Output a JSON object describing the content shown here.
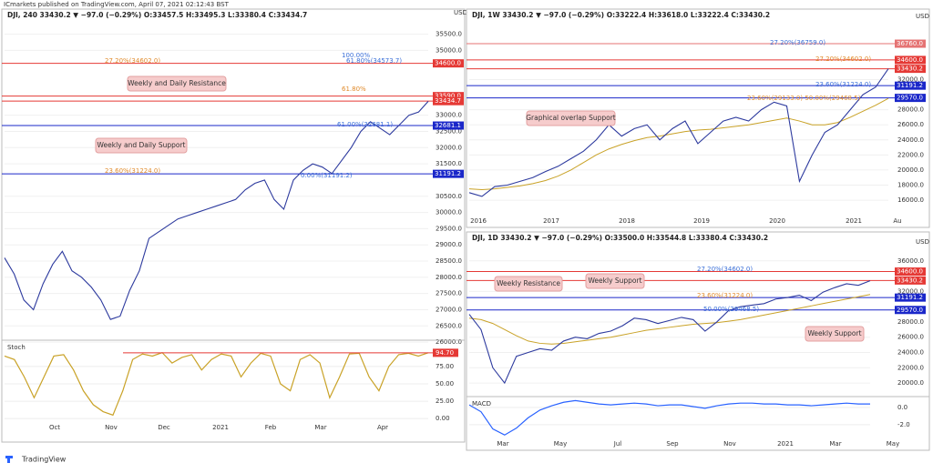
{
  "header": "ICmarkets published on TradingView.com, April 07, 2021 02:12:43 BST",
  "footer": "TradingView",
  "panels": [
    {
      "title": "DJI, 240  33430.2 ▼ −97.0 (−0.29%) O:33457.5 H:33495.3 L:33380.4 C:33434.7",
      "currency": "USD",
      "ylim": [
        25750,
        36050
      ],
      "ticks": [
        {
          "value": 35500,
          "label": "35500.0"
        },
        {
          "value": 35000,
          "label": "35000.0"
        },
        {
          "value": 33000,
          "label": "33000.0"
        },
        {
          "value": 32500,
          "label": "32500.0"
        },
        {
          "value": 32000,
          "label": "32000.0"
        },
        {
          "value": 31500,
          "label": "31500.0"
        },
        {
          "value": 30500,
          "label": "30500.0"
        },
        {
          "value": 30000,
          "label": "30000.0"
        },
        {
          "value": 29500,
          "label": "29500.0"
        },
        {
          "value": 29000,
          "label": "29000.0"
        },
        {
          "value": 28500,
          "label": "28500.0"
        },
        {
          "value": 28000,
          "label": "28000.0"
        },
        {
          "value": 27500,
          "label": "27500.0"
        },
        {
          "value": 27000,
          "label": "27000.0"
        },
        {
          "value": 26500,
          "label": "26500.0"
        },
        {
          "value": 26000,
          "label": "26000.0"
        }
      ],
      "levels": [
        {
          "value": 34600,
          "label": "34600.0",
          "color": "#e53935"
        },
        {
          "value": 33590,
          "label": "33590.0",
          "color": "#e53935"
        },
        {
          "value": 33434.7,
          "label": "33434.7",
          "color": "#e53935"
        },
        {
          "value": 32681.1,
          "label": "32681.1",
          "color": "#1a27c9"
        },
        {
          "value": 31191.2,
          "label": "31191.2",
          "color": "#1a27c9"
        }
      ],
      "annotations": [
        "100.00%",
        "27.20%(34602.0)",
        "61.80%(34573.7)",
        "61.80%",
        "61.00%(32681.1)",
        "23.60%(31224.0)",
        "0.00%(31191.2)"
      ],
      "callouts": [
        "Weekly and Daily Resistance",
        "Weekly and Daily Support"
      ],
      "time_labels": [
        "Oct",
        "Nov",
        "Dec",
        "2021",
        "Feb",
        "Mar",
        "Apr"
      ],
      "prices": [
        28600,
        28100,
        27300,
        27000,
        27800,
        28400,
        28800,
        28200,
        28000,
        27700,
        27300,
        26700,
        26800,
        27600,
        28200,
        29200,
        29400,
        29600,
        29800,
        29900,
        30000,
        30100,
        30200,
        30300,
        30400,
        30700,
        30900,
        31000,
        30400,
        30100,
        31000,
        31300,
        31500,
        31400,
        31200,
        31600,
        32000,
        32500,
        32800,
        32600,
        32400,
        32700,
        33000,
        33100,
        33430
      ],
      "osc": {
        "name": "Stoch",
        "ylim": [
          -5,
          105
        ],
        "ticks": [
          {
            "value": 75,
            "label": "75.00"
          },
          {
            "value": 50,
            "label": "50.00"
          },
          {
            "value": 25,
            "label": "25.00"
          },
          {
            "value": 0,
            "label": "0.00"
          }
        ],
        "last": {
          "value": 94.7,
          "label": "94.70"
        },
        "values": [
          90,
          85,
          60,
          30,
          60,
          90,
          92,
          70,
          40,
          20,
          10,
          5,
          40,
          85,
          93,
          90,
          95,
          80,
          88,
          92,
          70,
          85,
          93,
          90,
          60,
          80,
          94,
          90,
          50,
          40,
          85,
          92,
          80,
          30,
          60,
          93,
          94,
          60,
          40,
          75,
          92,
          94,
          90,
          94.7
        ]
      }
    },
    {
      "title": "DJI, 1W  33430.2 ▼ −97.0 (−0.29%) O:33222.4 H:33618.0 L:33222.4 C:33430.2",
      "currency": "USD",
      "ylim": [
        14200,
        39900
      ],
      "ticks": [
        {
          "value": 32000,
          "label": "32000.0"
        },
        {
          "value": 28000,
          "label": "28000.0"
        },
        {
          "value": 26000,
          "label": "26000.0"
        },
        {
          "value": 24000,
          "label": "24000.0"
        },
        {
          "value": 22000,
          "label": "22000.0"
        },
        {
          "value": 20000,
          "label": "20000.0"
        },
        {
          "value": 18000,
          "label": "18000.0"
        },
        {
          "value": 16000,
          "label": "16000.0"
        }
      ],
      "levels": [
        {
          "value": 36760,
          "label": "36760.0",
          "color": "#e57373"
        },
        {
          "value": 34600,
          "label": "34600.0",
          "color": "#e53935"
        },
        {
          "value": 33430.2,
          "label": "33430.2",
          "color": "#e53935"
        },
        {
          "value": 31191.2,
          "label": "31191.2",
          "color": "#1a27c9"
        },
        {
          "value": 29570,
          "label": "29570.0",
          "color": "#1a27c9"
        }
      ],
      "annotations": [
        "27.20%(36759.0)",
        "27.20%(34602.0)",
        "23.60%(31224.0)",
        "23.60%(29133.0) 50.00%(29468.5)"
      ],
      "callouts": [
        "Graphical overlap Support"
      ],
      "time_labels": [
        "2016",
        "2017",
        "2018",
        "2019",
        "2020",
        "2021",
        "Au"
      ],
      "prices": [
        17000,
        16500,
        17800,
        18000,
        18500,
        19000,
        19800,
        20500,
        21500,
        22500,
        24000,
        26000,
        24500,
        25500,
        26000,
        24000,
        25500,
        26500,
        23500,
        25000,
        26500,
        27000,
        26500,
        28000,
        29000,
        28500,
        18500,
        22000,
        25000,
        26000,
        28000,
        30000,
        31000,
        33430
      ],
      "ma": [
        17500,
        17400,
        17500,
        17700,
        17900,
        18200,
        18600,
        19200,
        20000,
        21000,
        22000,
        22800,
        23400,
        23900,
        24300,
        24500,
        24800,
        25100,
        25300,
        25400,
        25600,
        25800,
        26000,
        26300,
        26600,
        26900,
        26500,
        26000,
        26000,
        26300,
        27000,
        27800,
        28600,
        29500
      ]
    },
    {
      "title": "DJI, 1D  33430.2 ▼ −97.0 (−0.29%) O:33500.0 H:33544.8 L:33380.4 C:33430.2",
      "currency": "USD",
      "ylim": [
        18700,
        38000
      ],
      "ticks": [
        {
          "value": 36000,
          "label": "36000.0"
        },
        {
          "value": 32000,
          "label": "32000.0"
        },
        {
          "value": 28000,
          "label": "28000.0"
        },
        {
          "value": 26000,
          "label": "26000.0"
        },
        {
          "value": 24000,
          "label": "24000.0"
        },
        {
          "value": 22000,
          "label": "22000.0"
        },
        {
          "value": 20000,
          "label": "20000.0"
        }
      ],
      "levels": [
        {
          "value": 34600,
          "label": "34600.0",
          "color": "#e53935"
        },
        {
          "value": 33430.2,
          "label": "33430.2",
          "color": "#e53935"
        },
        {
          "value": 31191.2,
          "label": "31191.2",
          "color": "#1a27c9"
        },
        {
          "value": 29570,
          "label": "29570.0",
          "color": "#1a27c9"
        }
      ],
      "annotations": [
        "27.20%(34602.0)",
        "23.60%(31224.0)",
        "50.00%(29468.5)"
      ],
      "callouts": [
        "Weekly Resistance",
        "Weekly Support",
        "Weekly Support"
      ],
      "time_labels": [
        "Mar",
        "May",
        "Jul",
        "Sep",
        "Nov",
        "2021",
        "Mar",
        "May"
      ],
      "prices": [
        29000,
        27000,
        22000,
        20000,
        23500,
        24000,
        24500,
        24300,
        25500,
        26000,
        25800,
        26500,
        26800,
        27500,
        28500,
        28300,
        27800,
        28200,
        28600,
        28300,
        26800,
        28000,
        29500,
        30000,
        30200,
        30400,
        31000,
        31200,
        31500,
        30800,
        31900,
        32500,
        33000,
        32800,
        33400
      ],
      "ma": [
        28500,
        28300,
        27800,
        27000,
        26200,
        25500,
        25200,
        25100,
        25200,
        25400,
        25600,
        25800,
        26000,
        26300,
        26600,
        26900,
        27100,
        27300,
        27500,
        27700,
        27800,
        27900,
        28100,
        28300,
        28600,
        28900,
        29200,
        29500,
        29800,
        30100,
        30400,
        30700,
        31000,
        31300,
        31600
      ],
      "osc": {
        "name": "MACD",
        "ylim": [
          -3.6,
          1.05
        ],
        "ticks": [
          {
            "value": 0,
            "label": "0.0"
          },
          {
            "value": -2,
            "label": "-2.0"
          }
        ],
        "values": [
          0.3,
          -0.5,
          -2.5,
          -3.2,
          -2.4,
          -1.2,
          -0.3,
          0.2,
          0.6,
          0.8,
          0.6,
          0.4,
          0.3,
          0.4,
          0.5,
          0.4,
          0.2,
          0.3,
          0.3,
          0.1,
          -0.1,
          0.2,
          0.4,
          0.5,
          0.5,
          0.4,
          0.4,
          0.3,
          0.3,
          0.2,
          0.3,
          0.4,
          0.5,
          0.4,
          0.4
        ]
      }
    }
  ]
}
